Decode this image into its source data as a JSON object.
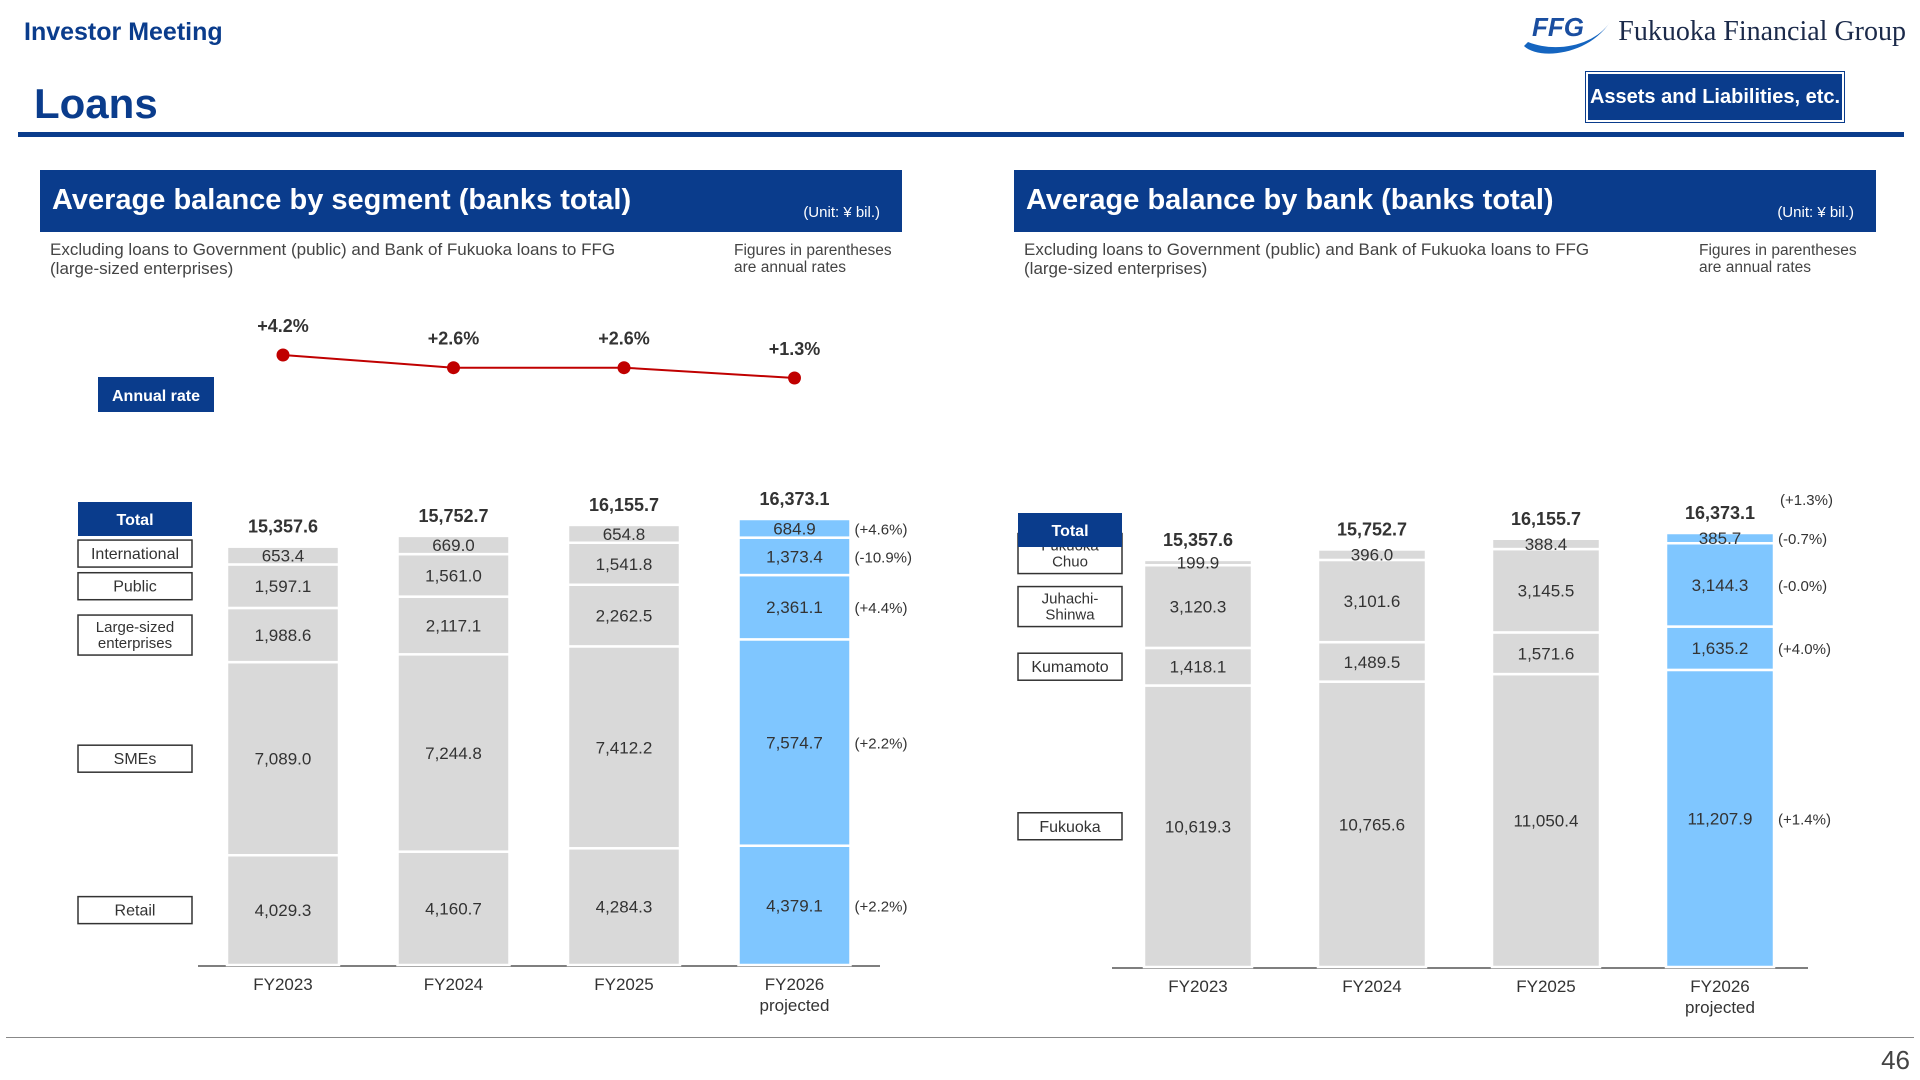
{
  "header": {
    "meeting": "Investor Meeting",
    "brand_mark": "FFG",
    "brand_name": "Fukuoka Financial Group",
    "title": "Loans",
    "badge": "Assets and Liabilities, etc.",
    "page_number": "46"
  },
  "colors": {
    "navy": "#0a3c8c",
    "grey_bar": "#d9d9d9",
    "projected_bar": "#7fc6ff",
    "rate_line": "#c00000"
  },
  "left_panel": {
    "heading": "Average balance by segment (banks total)",
    "unit": "(Unit: ¥ bil.)",
    "note_line1": "Excluding loans to Government (public) and Bank of Fukuoka loans to FFG",
    "note_line2": "(large-sized enterprises)",
    "parens_note_line1": "Figures in parentheses",
    "parens_note_line2": "are annual rates",
    "annual_rate_label": "Annual rate",
    "total_label": "Total"
  },
  "right_panel": {
    "heading": "Average balance by bank (banks total)",
    "unit": "(Unit: ¥ bil.)",
    "note_line1": "Excluding loans to Government (public) and Bank of Fukuoka loans to FFG",
    "note_line2": "(large-sized enterprises)",
    "parens_note_line1": "Figures in parentheses",
    "parens_note_line2": "are annual rates",
    "total_label": "Total"
  },
  "chart_data": [
    {
      "type": "bar",
      "stacked": true,
      "categories": [
        "FY2023",
        "FY2024",
        "FY2025",
        "FY2026"
      ],
      "category_sublabels": [
        "",
        "",
        "",
        "projected"
      ],
      "projected_index": 3,
      "series": [
        {
          "name": "Retail",
          "values": [
            4029.3,
            4160.7,
            4284.3,
            4379.1
          ],
          "labels": [
            "4,029.3",
            "4,160.7",
            "4,284.3",
            "4,379.1"
          ],
          "rate": "(+2.2%)"
        },
        {
          "name": "SMEs",
          "values": [
            7089.0,
            7244.8,
            7412.2,
            7574.7
          ],
          "labels": [
            "7,089.0",
            "7,244.8",
            "7,412.2",
            "7,574.7"
          ],
          "rate": "(+2.2%)"
        },
        {
          "name": "Large-sized enterprises",
          "values": [
            1988.6,
            2117.1,
            2262.5,
            2361.1
          ],
          "labels": [
            "1,988.6",
            "2,117.1",
            "2,262.5",
            "2,361.1"
          ],
          "rate": "(+4.4%)"
        },
        {
          "name": "Public",
          "values": [
            1597.1,
            1561.0,
            1541.8,
            1373.4
          ],
          "labels": [
            "1,597.1",
            "1,561.0",
            "1,541.8",
            "1,373.4"
          ],
          "rate": "(-10.9%)"
        },
        {
          "name": "International",
          "values": [
            653.4,
            669.0,
            654.8,
            684.9
          ],
          "labels": [
            "653.4",
            "669.0",
            "654.8",
            "684.9"
          ],
          "rate": "(+4.6%)"
        }
      ],
      "totals": [
        15357.6,
        15752.7,
        16155.7,
        16373.1
      ],
      "total_labels": [
        "15,357.6",
        "15,752.7",
        "16,155.7",
        "16,373.1"
      ],
      "annual_rate": {
        "values": [
          4.2,
          2.6,
          2.6,
          1.3
        ],
        "labels": [
          "+4.2%",
          "+2.6%",
          "+2.6%",
          "+1.3%"
        ]
      }
    },
    {
      "type": "bar",
      "stacked": true,
      "categories": [
        "FY2023",
        "FY2024",
        "FY2025",
        "FY2026"
      ],
      "category_sublabels": [
        "",
        "",
        "",
        "projected"
      ],
      "projected_index": 3,
      "series": [
        {
          "name": "Fukuoka",
          "values": [
            10619.3,
            10765.6,
            11050.4,
            11207.9
          ],
          "labels": [
            "10,619.3",
            "10,765.6",
            "11,050.4",
            "11,207.9"
          ],
          "rate": "(+1.4%)"
        },
        {
          "name": "Kumamoto",
          "values": [
            1418.1,
            1489.5,
            1571.6,
            1635.2
          ],
          "labels": [
            "1,418.1",
            "1,489.5",
            "1,571.6",
            "1,635.2"
          ],
          "rate": "(+4.0%)"
        },
        {
          "name": "Juhachi-Shinwa",
          "legend_lines": [
            "Juhachi-",
            "Shinwa"
          ],
          "values": [
            3120.3,
            3101.6,
            3145.5,
            3144.3
          ],
          "labels": [
            "3,120.3",
            "3,101.6",
            "3,145.5",
            "3,144.3"
          ],
          "rate": "(-0.0%)"
        },
        {
          "name": "Fukuoka Chuo",
          "legend_lines": [
            "Fukuoka",
            "Chuo"
          ],
          "values": [
            199.9,
            396.0,
            388.4,
            385.7
          ],
          "labels": [
            "199.9",
            "396.0",
            "388.4",
            "385.7"
          ],
          "rate": "(-0.7%)"
        }
      ],
      "totals": [
        15357.6,
        15752.7,
        16155.7,
        16373.1
      ],
      "total_labels": [
        "15,357.6",
        "15,752.7",
        "16,155.7",
        "16,373.1"
      ],
      "total_rate": "(+1.3%)"
    }
  ]
}
